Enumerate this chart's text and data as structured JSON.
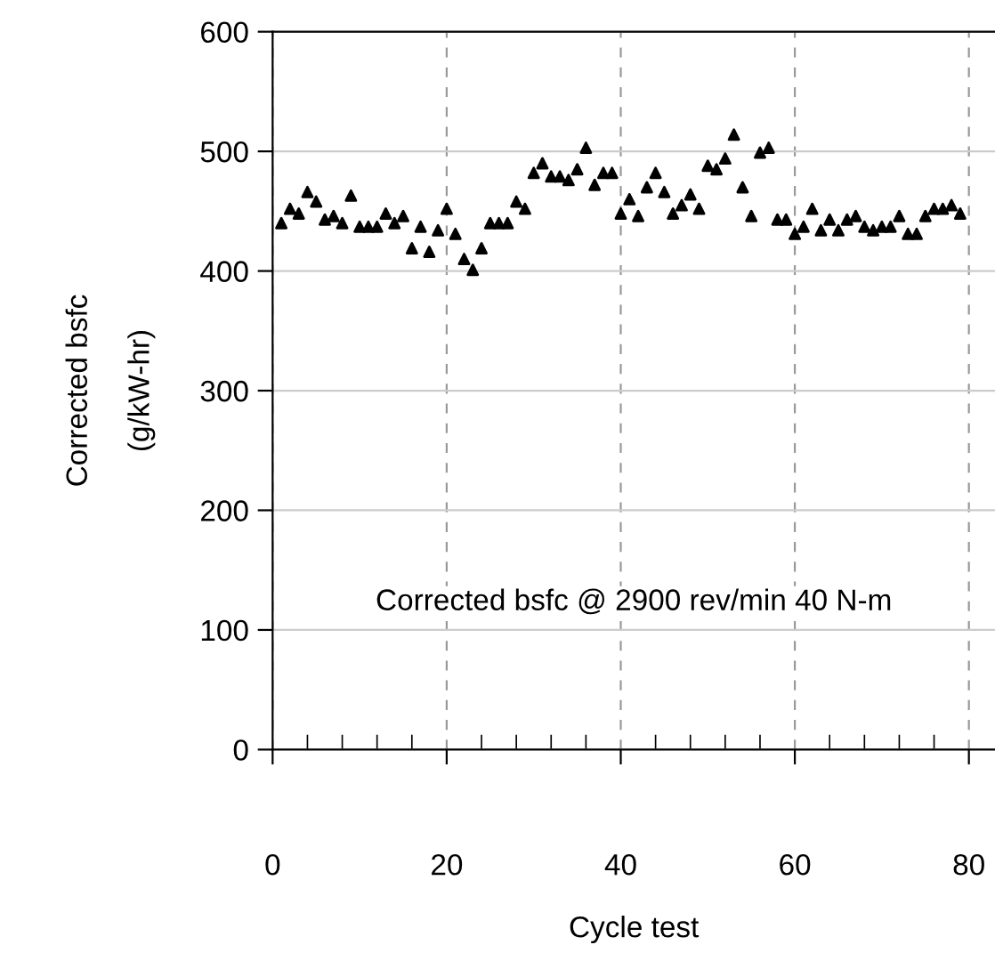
{
  "chart_data": {
    "type": "scatter",
    "xlabel": "Cycle test",
    "ylabel": "Corrected bsfc\n(g/kW-hr)",
    "annotations": [
      "Corrected bsfc @ 2900 rev/min 40 N-m"
    ],
    "x": [
      1,
      2,
      3,
      4,
      5,
      6,
      7,
      8,
      9,
      10,
      11,
      12,
      13,
      14,
      15,
      16,
      17,
      18,
      19,
      20,
      21,
      22,
      23,
      24,
      25,
      26,
      27,
      28,
      29,
      30,
      31,
      32,
      33,
      34,
      35,
      36,
      37,
      38,
      39,
      40,
      41,
      42,
      43,
      44,
      45,
      46,
      47,
      48,
      49,
      50,
      51,
      52,
      53,
      54,
      55,
      56,
      57,
      58,
      59,
      60,
      61,
      62,
      63,
      64,
      65,
      66,
      67,
      68,
      69,
      70,
      71,
      72,
      73,
      74,
      75,
      76,
      77,
      78,
      79
    ],
    "series": [
      {
        "color": "#000000",
        "values": [
          440,
          452,
          448,
          466,
          458,
          443,
          446,
          440,
          463,
          437,
          437,
          437,
          448,
          440,
          446,
          419,
          437,
          416,
          434,
          452,
          431,
          410,
          401,
          419,
          440,
          440,
          440,
          458,
          452,
          482,
          490,
          479,
          479,
          476,
          485,
          503,
          472,
          482,
          482,
          448,
          460,
          446,
          470,
          482,
          466,
          448,
          455,
          464,
          452,
          488,
          485,
          494,
          514,
          470,
          446,
          499,
          503,
          443,
          443,
          431,
          437,
          452,
          434,
          443,
          434,
          443,
          446,
          437,
          434,
          437,
          437,
          446,
          431,
          431,
          446,
          452,
          452,
          455,
          448
        ]
      }
    ],
    "marker": "triangle",
    "xlim": [
      0,
      83
    ],
    "ylim": [
      0,
      600
    ],
    "xticks": [
      0,
      20,
      40,
      60,
      80
    ],
    "yticks": [
      0,
      100,
      200,
      300,
      400,
      500,
      600
    ],
    "grid": true
  }
}
